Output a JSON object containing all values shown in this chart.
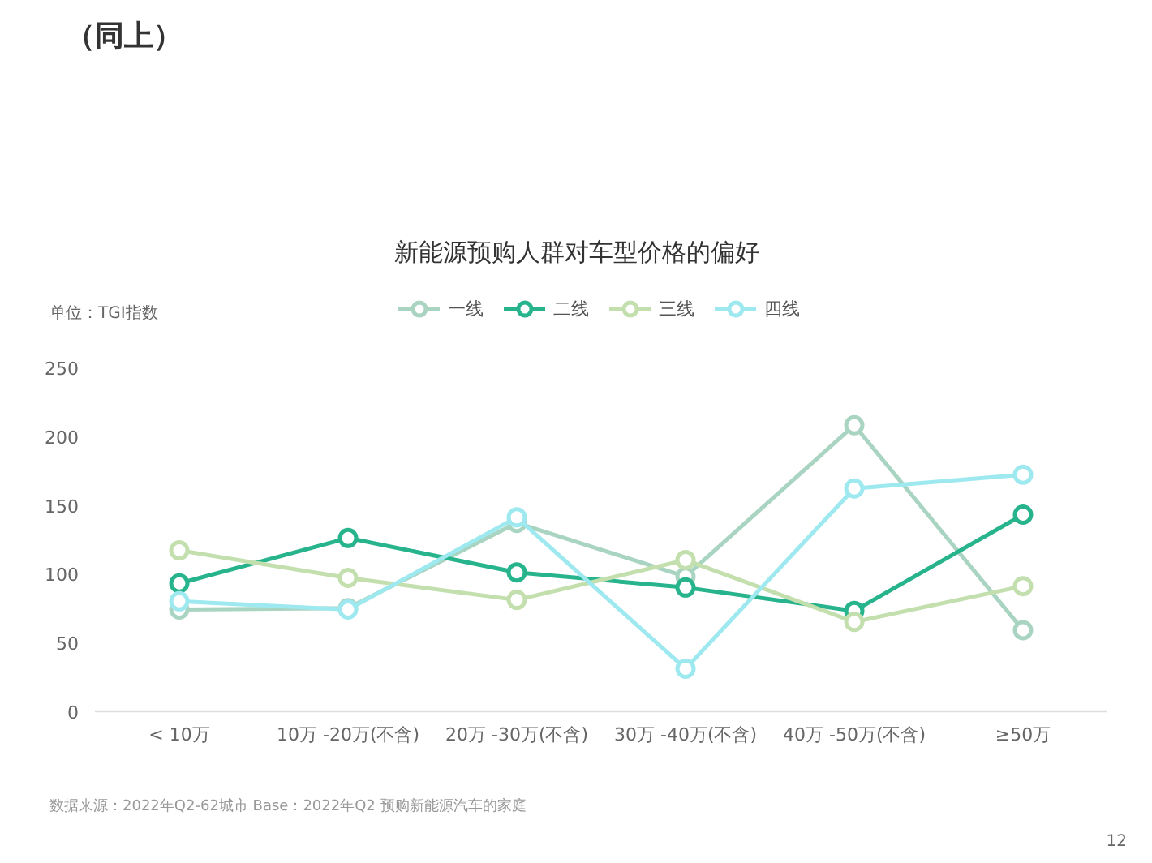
{
  "chart_data": {
    "type": "line",
    "title": "新能源预购人群对车型价格的偏好",
    "ylabel": "单位：TGI指数",
    "annotations": [
      "（同上）",
      "数据来源：2022年Q2-62城市  Base：2022年Q2 预购新能源汽车的家庭",
      "12"
    ],
    "categories": [
      "< 10万",
      "10万 -20万(不含)",
      "20万 -30万(不含)",
      "30万 -40万(不含)",
      "40万 -50万(不含)",
      "≥50万"
    ],
    "series": [
      {
        "name": "一线",
        "color": "#a9d4c2",
        "values": [
          74,
          75,
          137,
          98,
          208,
          59
        ]
      },
      {
        "name": "二线",
        "color": "#27b48c",
        "values": [
          93,
          126,
          101,
          90,
          73,
          143
        ]
      },
      {
        "name": "三线",
        "color": "#c3dfae",
        "values": [
          117,
          97,
          81,
          110,
          65,
          91
        ]
      },
      {
        "name": "四线",
        "color": "#9de9ef",
        "values": [
          80,
          74,
          141,
          31,
          162,
          172
        ]
      }
    ],
    "ylim": [
      0,
      250
    ],
    "yticks": [
      0,
      50,
      100,
      150,
      200,
      250
    ],
    "grid": false,
    "legend": "top",
    "marker": "circle",
    "line_style": "solid"
  }
}
